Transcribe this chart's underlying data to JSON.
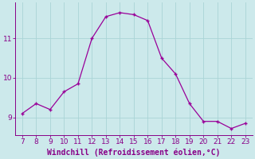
{
  "x": [
    7,
    8,
    9,
    10,
    11,
    12,
    13,
    14,
    15,
    16,
    17,
    18,
    19,
    20,
    21,
    22,
    23
  ],
  "y": [
    9.1,
    9.35,
    9.2,
    9.65,
    9.85,
    11.0,
    11.55,
    11.65,
    11.6,
    11.45,
    10.5,
    10.1,
    9.35,
    8.9,
    8.9,
    8.72,
    8.85
  ],
  "line_color": "#990099",
  "marker": "+",
  "background_color": "#cce9eb",
  "grid_color": "#aad4d6",
  "xlabel": "Windchill (Refroidissement éolien,°C)",
  "xlabel_color": "#880088",
  "tick_color": "#880088",
  "spine_color": "#880088",
  "xlim": [
    6.5,
    23.5
  ],
  "ylim": [
    8.55,
    11.9
  ],
  "yticks": [
    9,
    10,
    11
  ],
  "xticks": [
    7,
    8,
    9,
    10,
    11,
    12,
    13,
    14,
    15,
    16,
    17,
    18,
    19,
    20,
    21,
    22,
    23
  ],
  "xlabel_fontsize": 7.0,
  "tick_fontsize": 6.5,
  "grid_linewidth": 0.6,
  "line_width": 0.9,
  "marker_size": 3.5,
  "marker_edge_width": 1.0
}
